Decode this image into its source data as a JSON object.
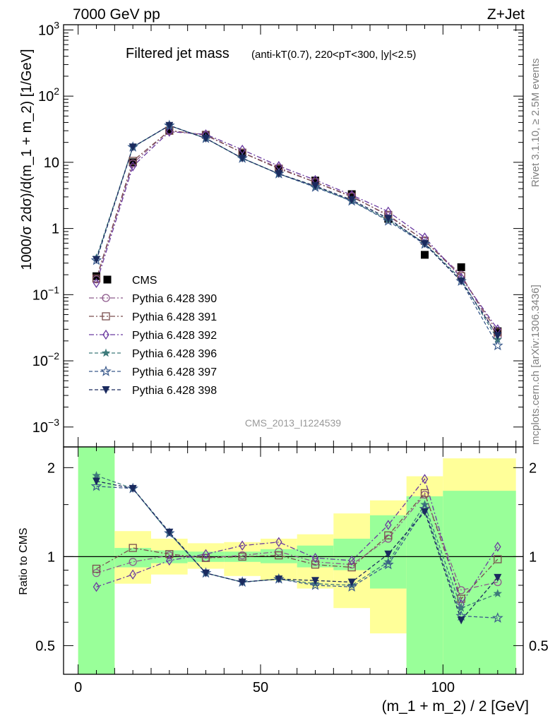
{
  "header": {
    "left": "7000 GeV pp",
    "right": "Z+Jet"
  },
  "side_labels": {
    "rivet": "Rivet 3.1.10, ≥ 2.5M events",
    "mcplots": "mcplots.cern.ch [arXiv:1306.3436]"
  },
  "chart_data": [
    {
      "type": "scatter",
      "title": "Filtered jet mass",
      "subtitle": "(anti-kT(0.7), 220<pT<300, |y|<2.5)",
      "watermark": "CMS_2013_I1224539",
      "ylabel": "1000/σ 2dσ)/d(m_1 + m_2) [1/GeV]",
      "xlabel": "",
      "xlim": [
        -4,
        122
      ],
      "ylim": [
        0.0005,
        1200
      ],
      "yscale": "log",
      "y_ticks": [
        "10^-3",
        "10^-2",
        "10^-1",
        "1",
        "10",
        "10^2",
        "10^3"
      ],
      "legend_position": "lower-left",
      "x": [
        5,
        15,
        25,
        35,
        45,
        55,
        65,
        75,
        85,
        95,
        105,
        115
      ],
      "series": [
        {
          "name": "CMS",
          "color": "#000000",
          "marker": "square-filled",
          "line": "none",
          "values": [
            0.19,
            10.0,
            30.0,
            26.0,
            14.0,
            8.0,
            5.3,
            3.3,
            1.4,
            0.4,
            0.26,
            0.028
          ]
        },
        {
          "name": "Pythia 6.428 390",
          "color": "#8e5a8c",
          "marker": "circle-open",
          "line": "dashdot",
          "values": [
            0.17,
            9.6,
            30.5,
            25.5,
            14.0,
            8.3,
            5.0,
            3.1,
            1.55,
            0.66,
            0.2,
            0.023
          ]
        },
        {
          "name": "Pythia 6.428 391",
          "color": "#7a4e4e",
          "marker": "square-open",
          "line": "dashdot",
          "values": [
            0.175,
            10.5,
            30.0,
            26.0,
            14.0,
            8.0,
            5.0,
            3.0,
            1.6,
            0.65,
            0.19,
            0.027
          ]
        },
        {
          "name": "Pythia 6.428 392",
          "color": "#6a3aa0",
          "marker": "diamond-open",
          "line": "dashdot",
          "values": [
            0.15,
            8.7,
            29.0,
            26.5,
            15.5,
            8.8,
            5.4,
            3.2,
            1.8,
            0.73,
            0.18,
            0.03
          ]
        },
        {
          "name": "Pythia 6.428 396",
          "color": "#3d7a7a",
          "marker": "star-filled",
          "line": "dashed",
          "values": [
            0.36,
            17.0,
            36.0,
            23.0,
            11.5,
            6.7,
            4.3,
            2.6,
            1.35,
            0.6,
            0.17,
            0.021
          ]
        },
        {
          "name": "Pythia 6.428 397",
          "color": "#3a5a8c",
          "marker": "star-open",
          "line": "dashed",
          "values": [
            0.33,
            17.0,
            36.0,
            23.0,
            11.5,
            6.7,
            4.2,
            2.6,
            1.3,
            0.58,
            0.16,
            0.017
          ]
        },
        {
          "name": "Pythia 6.428 398",
          "color": "#1a2a5e",
          "marker": "triangle-down-filled",
          "line": "dashed",
          "values": [
            0.34,
            17.0,
            36.0,
            23.0,
            11.5,
            6.7,
            4.4,
            2.7,
            1.42,
            0.59,
            0.16,
            0.024
          ]
        }
      ]
    },
    {
      "type": "scatter",
      "title": "",
      "ylabel": "Ratio to CMS",
      "xlabel": "(m_1 + m_2) / 2 [GeV]",
      "xlim": [
        -4,
        122
      ],
      "ylim": [
        0.4,
        2.35
      ],
      "yscale": "log",
      "x_ticks": [
        0,
        50,
        100
      ],
      "y_ticks": [
        0.5,
        1,
        2
      ],
      "reference_line": 1,
      "uncertainty_bands": {
        "bins": [
          [
            0,
            10
          ],
          [
            10,
            20
          ],
          [
            20,
            30
          ],
          [
            30,
            40
          ],
          [
            40,
            50
          ],
          [
            50,
            60
          ],
          [
            60,
            70
          ],
          [
            70,
            80
          ],
          [
            80,
            90
          ],
          [
            90,
            100
          ],
          [
            100,
            120
          ]
        ],
        "stat_color": "#99ff99",
        "total_color": "#ffff99",
        "stat_low": [
          0.4,
          0.92,
          0.95,
          0.96,
          0.96,
          0.95,
          0.92,
          0.9,
          0.78,
          0.4,
          0.4
        ],
        "stat_high": [
          2.35,
          1.07,
          1.05,
          1.04,
          1.04,
          1.06,
          1.09,
          1.15,
          1.38,
          1.6,
          1.67
        ],
        "total_low": [
          0.4,
          0.81,
          0.87,
          0.91,
          0.86,
          0.83,
          0.78,
          0.67,
          0.55,
          0.4,
          0.4
        ],
        "total_high": [
          2.35,
          1.22,
          1.15,
          1.11,
          1.12,
          1.15,
          1.19,
          1.4,
          1.55,
          1.87,
          2.15
        ]
      },
      "x": [
        5,
        15,
        25,
        35,
        45,
        55,
        65,
        75,
        85,
        95,
        105,
        115
      ],
      "series": [
        {
          "name": "Pythia 6.428 390",
          "color": "#8e5a8c",
          "marker": "circle-open",
          "line": "dashdot",
          "values": [
            0.88,
            0.96,
            1.01,
            0.99,
            1.01,
            1.04,
            0.96,
            0.94,
            1.15,
            1.62,
            0.77,
            0.82
          ]
        },
        {
          "name": "Pythia 6.428 391",
          "color": "#7a4e4e",
          "marker": "square-open",
          "line": "dashdot",
          "values": [
            0.91,
            1.07,
            1.02,
            0.99,
            1.0,
            1.01,
            0.94,
            0.92,
            1.18,
            1.64,
            0.72,
            0.98
          ]
        },
        {
          "name": "Pythia 6.428 392",
          "color": "#6a3aa0",
          "marker": "diamond-open",
          "line": "dashdot",
          "values": [
            0.79,
            0.87,
            0.97,
            1.02,
            1.09,
            1.12,
            0.99,
            0.97,
            1.28,
            1.83,
            0.69,
            1.08
          ]
        },
        {
          "name": "Pythia 6.428 396",
          "color": "#3d7a7a",
          "marker": "star-filled",
          "line": "dashed",
          "values": [
            1.88,
            1.7,
            1.2,
            0.88,
            0.82,
            0.84,
            0.81,
            0.8,
            0.96,
            1.5,
            0.67,
            0.75
          ]
        },
        {
          "name": "Pythia 6.428 397",
          "color": "#3a5a8c",
          "marker": "star-open",
          "line": "dashed",
          "values": [
            1.73,
            1.7,
            1.2,
            0.88,
            0.82,
            0.84,
            0.8,
            0.79,
            0.94,
            1.45,
            0.63,
            0.62
          ]
        },
        {
          "name": "Pythia 6.428 398",
          "color": "#1a2a5e",
          "marker": "triangle-down-filled",
          "line": "dashed",
          "values": [
            1.8,
            1.7,
            1.21,
            0.88,
            0.82,
            0.84,
            0.83,
            0.82,
            1.02,
            1.42,
            0.61,
            0.85
          ]
        }
      ]
    }
  ]
}
